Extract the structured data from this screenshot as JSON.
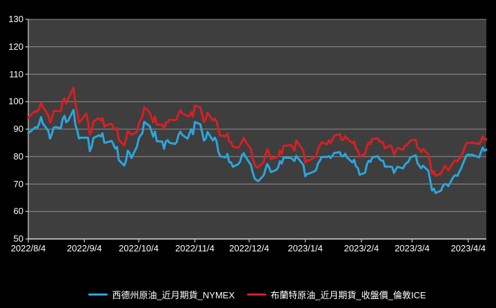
{
  "chart_data": {
    "type": "line",
    "title": "",
    "grid": true,
    "legend_position": "bottom",
    "background": "#000000",
    "plot_background": "#3e3e3e",
    "gridline_color": "#8f8f8f",
    "axis_color": "#b0b0b0",
    "text_color": "#ffffff",
    "ylim": [
      50,
      130
    ],
    "y_ticks": [
      130,
      120,
      110,
      100,
      90,
      80,
      70,
      60,
      50
    ],
    "x_ticks": [
      {
        "label": "2022/8/4",
        "date": "2022-08-04"
      },
      {
        "label": "2022/9/4",
        "date": "2022-09-04"
      },
      {
        "label": "2022/10/4",
        "date": "2022-10-04"
      },
      {
        "label": "2022/11/4",
        "date": "2022-11-04"
      },
      {
        "label": "2022/12/4",
        "date": "2022-12-04"
      },
      {
        "label": "2023/1/4",
        "date": "2023-01-04"
      },
      {
        "label": "2023/2/4",
        "date": "2023-02-04"
      },
      {
        "label": "2023/3/4",
        "date": "2023-03-04"
      },
      {
        "label": "2023/4/4",
        "date": "2023-04-04"
      }
    ],
    "x": [
      "2022-08-04",
      "2022-08-05",
      "2022-08-08",
      "2022-08-09",
      "2022-08-10",
      "2022-08-11",
      "2022-08-12",
      "2022-08-15",
      "2022-08-16",
      "2022-08-17",
      "2022-08-18",
      "2022-08-19",
      "2022-08-22",
      "2022-08-23",
      "2022-08-24",
      "2022-08-25",
      "2022-08-26",
      "2022-08-29",
      "2022-08-30",
      "2022-08-31",
      "2022-09-01",
      "2022-09-02",
      "2022-09-05",
      "2022-09-06",
      "2022-09-07",
      "2022-09-08",
      "2022-09-09",
      "2022-09-12",
      "2022-09-13",
      "2022-09-14",
      "2022-09-15",
      "2022-09-16",
      "2022-09-19",
      "2022-09-20",
      "2022-09-21",
      "2022-09-22",
      "2022-09-23",
      "2022-09-26",
      "2022-09-27",
      "2022-09-28",
      "2022-09-29",
      "2022-09-30",
      "2022-10-03",
      "2022-10-04",
      "2022-10-05",
      "2022-10-06",
      "2022-10-07",
      "2022-10-10",
      "2022-10-11",
      "2022-10-12",
      "2022-10-13",
      "2022-10-14",
      "2022-10-17",
      "2022-10-18",
      "2022-10-19",
      "2022-10-20",
      "2022-10-21",
      "2022-10-24",
      "2022-10-25",
      "2022-10-26",
      "2022-10-27",
      "2022-10-28",
      "2022-10-31",
      "2022-11-01",
      "2022-11-02",
      "2022-11-03",
      "2022-11-04",
      "2022-11-07",
      "2022-11-08",
      "2022-11-09",
      "2022-11-10",
      "2022-11-11",
      "2022-11-14",
      "2022-11-15",
      "2022-11-16",
      "2022-11-17",
      "2022-11-18",
      "2022-11-21",
      "2022-11-22",
      "2022-11-23",
      "2022-11-24",
      "2022-11-25",
      "2022-11-28",
      "2022-11-29",
      "2022-11-30",
      "2022-12-01",
      "2022-12-02",
      "2022-12-05",
      "2022-12-06",
      "2022-12-07",
      "2022-12-08",
      "2022-12-09",
      "2022-12-12",
      "2022-12-13",
      "2022-12-14",
      "2022-12-15",
      "2022-12-16",
      "2022-12-19",
      "2022-12-20",
      "2022-12-21",
      "2022-12-22",
      "2022-12-23",
      "2022-12-26",
      "2022-12-27",
      "2022-12-28",
      "2022-12-29",
      "2022-12-30",
      "2023-01-03",
      "2023-01-04",
      "2023-01-05",
      "2023-01-06",
      "2023-01-09",
      "2023-01-10",
      "2023-01-11",
      "2023-01-12",
      "2023-01-13",
      "2023-01-16",
      "2023-01-17",
      "2023-01-18",
      "2023-01-19",
      "2023-01-20",
      "2023-01-23",
      "2023-01-24",
      "2023-01-25",
      "2023-01-26",
      "2023-01-27",
      "2023-01-30",
      "2023-01-31",
      "2023-02-01",
      "2023-02-02",
      "2023-02-03",
      "2023-02-06",
      "2023-02-07",
      "2023-02-08",
      "2023-02-09",
      "2023-02-10",
      "2023-02-13",
      "2023-02-14",
      "2023-02-15",
      "2023-02-16",
      "2023-02-17",
      "2023-02-20",
      "2023-02-21",
      "2023-02-22",
      "2023-02-23",
      "2023-02-24",
      "2023-02-27",
      "2023-02-28",
      "2023-03-01",
      "2023-03-02",
      "2023-03-03",
      "2023-03-06",
      "2023-03-07",
      "2023-03-08",
      "2023-03-09",
      "2023-03-10",
      "2023-03-13",
      "2023-03-14",
      "2023-03-15",
      "2023-03-16",
      "2023-03-17",
      "2023-03-20",
      "2023-03-21",
      "2023-03-22",
      "2023-03-23",
      "2023-03-24",
      "2023-03-27",
      "2023-03-28",
      "2023-03-29",
      "2023-03-30",
      "2023-03-31",
      "2023-04-03",
      "2023-04-04",
      "2023-04-05",
      "2023-04-06",
      "2023-04-10",
      "2023-04-11",
      "2023-04-12",
      "2023-04-13",
      "2023-04-14"
    ],
    "series": [
      {
        "name": "西德州原油_近月期貨_NYMEX",
        "color": "#2ba6df",
        "values": [
          88.54,
          89.01,
          90.76,
          90.5,
          91.93,
          94.34,
          92.09,
          89.41,
          86.53,
          88.11,
          90.5,
          90.77,
          90.36,
          93.74,
          94.89,
          92.52,
          93.06,
          97.01,
          91.64,
          89.55,
          86.61,
          86.87,
          86.87,
          86.88,
          81.94,
          83.54,
          86.79,
          87.78,
          87.31,
          88.48,
          85.1,
          85.11,
          85.73,
          84.45,
          82.94,
          83.49,
          78.74,
          76.71,
          78.5,
          82.15,
          81.23,
          79.49,
          83.63,
          86.52,
          87.76,
          88.45,
          92.64,
          91.13,
          89.35,
          87.27,
          89.11,
          85.61,
          85.46,
          82.82,
          85.55,
          85.98,
          85.05,
          84.58,
          85.32,
          87.91,
          89.08,
          87.9,
          86.53,
          88.37,
          90.0,
          88.17,
          92.61,
          91.79,
          88.91,
          85.83,
          86.47,
          88.96,
          85.87,
          86.92,
          85.59,
          81.64,
          80.08,
          79.73,
          80.95,
          77.94,
          77.94,
          76.28,
          77.24,
          78.2,
          80.55,
          81.22,
          79.98,
          76.93,
          74.25,
          72.01,
          71.46,
          71.02,
          73.17,
          75.39,
          77.28,
          76.11,
          74.29,
          75.19,
          76.09,
          78.29,
          77.49,
          79.56,
          79.56,
          79.53,
          78.96,
          78.4,
          80.26,
          76.93,
          72.84,
          73.67,
          73.77,
          74.63,
          75.12,
          77.41,
          78.39,
          79.86,
          79.86,
          80.18,
          79.48,
          80.33,
          81.31,
          81.62,
          80.13,
          80.15,
          81.01,
          79.68,
          77.9,
          78.87,
          76.41,
          75.88,
          73.39,
          74.11,
          77.14,
          78.47,
          78.06,
          79.72,
          80.14,
          79.06,
          78.59,
          78.49,
          76.34,
          76.34,
          76.16,
          74.05,
          75.39,
          76.32,
          75.68,
          77.05,
          77.69,
          78.16,
          79.68,
          80.46,
          77.58,
          76.66,
          75.72,
          76.68,
          74.8,
          71.33,
          67.61,
          68.35,
          66.74,
          67.64,
          69.33,
          69.96,
          69.96,
          69.26,
          72.81,
          73.2,
          72.97,
          74.37,
          75.67,
          80.42,
          80.71,
          80.61,
          80.7,
          79.74,
          81.53,
          83.26,
          82.16,
          82.52
        ]
      },
      {
        "name": "布蘭特原油_近月期貨_收盤價_倫敦ICE",
        "color": "#d91f24",
        "values": [
          94.12,
          94.92,
          96.65,
          96.31,
          97.4,
          99.6,
          98.15,
          95.1,
          92.34,
          93.65,
          96.59,
          96.72,
          96.48,
          100.22,
          101.22,
          99.34,
          100.99,
          105.09,
          99.31,
          96.49,
          92.36,
          93.02,
          95.74,
          92.83,
          88.0,
          89.15,
          92.84,
          94.0,
          93.17,
          94.1,
          90.84,
          91.35,
          92.0,
          90.62,
          89.83,
          90.46,
          86.15,
          84.06,
          86.27,
          89.32,
          88.49,
          87.96,
          88.86,
          91.8,
          93.37,
          94.42,
          97.92,
          96.19,
          94.29,
          92.45,
          94.57,
          91.63,
          91.62,
          90.03,
          92.41,
          92.38,
          93.5,
          93.26,
          93.52,
          95.69,
          96.96,
          95.77,
          94.83,
          94.65,
          96.16,
          94.67,
          98.57,
          97.92,
          95.36,
          92.65,
          93.67,
          95.99,
          93.14,
          93.86,
          92.86,
          89.78,
          87.62,
          87.45,
          88.36,
          85.41,
          85.34,
          83.63,
          83.19,
          84.25,
          85.43,
          86.88,
          85.57,
          82.68,
          79.35,
          77.17,
          76.15,
          76.1,
          77.99,
          80.68,
          82.7,
          81.21,
          79.04,
          79.8,
          79.99,
          82.2,
          80.98,
          83.92,
          84.1,
          84.33,
          83.26,
          82.26,
          85.91,
          82.1,
          77.84,
          78.69,
          78.57,
          79.65,
          80.1,
          82.67,
          84.03,
          85.28,
          84.46,
          85.92,
          84.98,
          86.16,
          87.63,
          88.19,
          86.13,
          86.12,
          87.47,
          86.66,
          84.9,
          85.46,
          82.84,
          82.17,
          79.94,
          80.99,
          83.69,
          85.09,
          84.5,
          86.39,
          86.61,
          85.58,
          85.38,
          85.14,
          83.0,
          84.07,
          83.05,
          80.6,
          82.21,
          83.16,
          82.45,
          83.89,
          84.31,
          84.75,
          85.83,
          86.18,
          83.29,
          82.66,
          81.59,
          82.78,
          80.77,
          77.45,
          73.69,
          74.7,
          72.97,
          73.79,
          75.32,
          76.69,
          75.91,
          74.99,
          78.12,
          78.65,
          78.28,
          79.27,
          79.77,
          84.93,
          84.94,
          84.99,
          85.12,
          84.58,
          85.61,
          87.33,
          86.09,
          86.31
        ]
      }
    ]
  }
}
